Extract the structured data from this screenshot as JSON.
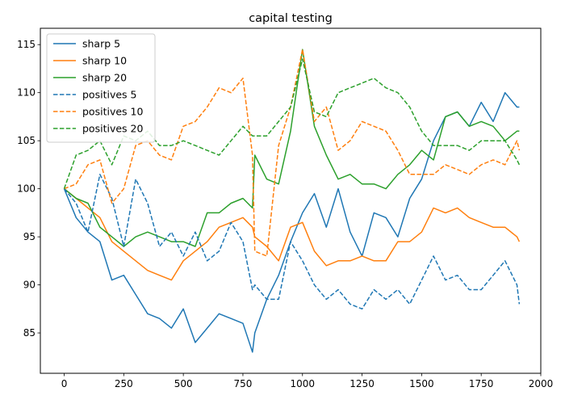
{
  "chart_data": {
    "type": "line",
    "title": "capital testing",
    "xlabel": "",
    "ylabel": "",
    "xlim": [
      -100,
      2000
    ],
    "ylim": [
      80.8,
      116.7
    ],
    "xticks": [
      0,
      250,
      500,
      750,
      1000,
      1250,
      1500,
      1750,
      2000
    ],
    "yticks": [
      85,
      90,
      95,
      100,
      105,
      110,
      115
    ],
    "grid": false,
    "legend_position": "top-left",
    "series": [
      {
        "name": "sharp 5",
        "color": "#1f77b4",
        "dash": "solid",
        "x": [
          0,
          50,
          100,
          150,
          200,
          250,
          300,
          350,
          400,
          450,
          500,
          550,
          600,
          650,
          700,
          750,
          790,
          800,
          850,
          900,
          950,
          1000,
          1050,
          1100,
          1150,
          1200,
          1250,
          1300,
          1350,
          1400,
          1450,
          1500,
          1550,
          1600,
          1650,
          1700,
          1750,
          1800,
          1850,
          1900,
          1910
        ],
        "y": [
          100,
          97,
          95.5,
          94.5,
          90.5,
          91,
          89,
          87,
          86.5,
          85.5,
          87.5,
          84,
          85.5,
          87,
          86.5,
          86,
          83,
          85,
          88.5,
          91,
          94.5,
          97.5,
          99.5,
          96,
          100,
          95.5,
          93,
          97.5,
          97,
          95,
          99,
          101,
          105,
          107.5,
          108,
          106.5,
          109,
          107,
          110,
          108.5,
          108.5
        ]
      },
      {
        "name": "sharp 10",
        "color": "#ff7f0e",
        "dash": "solid",
        "x": [
          0,
          50,
          100,
          150,
          200,
          250,
          300,
          350,
          400,
          450,
          500,
          550,
          600,
          650,
          700,
          750,
          790,
          800,
          850,
          900,
          950,
          1000,
          1050,
          1100,
          1150,
          1200,
          1250,
          1300,
          1350,
          1400,
          1450,
          1500,
          1550,
          1600,
          1650,
          1700,
          1750,
          1800,
          1850,
          1900,
          1910
        ],
        "y": [
          100,
          99,
          98,
          97,
          94.5,
          93.5,
          92.5,
          91.5,
          91,
          90.5,
          92.5,
          93.5,
          94.5,
          96,
          96.5,
          97,
          96,
          95,
          94,
          92.5,
          96,
          96.5,
          93.5,
          92,
          92.5,
          92.5,
          93,
          92.5,
          92.5,
          94.5,
          94.5,
          95.5,
          98,
          97.5,
          98,
          97,
          96.5,
          96,
          96,
          95,
          94.5
        ]
      },
      {
        "name": "sharp 20",
        "color": "#2ca02c",
        "dash": "solid",
        "x": [
          0,
          50,
          100,
          150,
          200,
          250,
          300,
          350,
          400,
          450,
          500,
          550,
          600,
          650,
          700,
          750,
          790,
          800,
          850,
          900,
          950,
          1000,
          1050,
          1100,
          1150,
          1200,
          1250,
          1300,
          1350,
          1400,
          1450,
          1500,
          1550,
          1600,
          1650,
          1700,
          1750,
          1800,
          1850,
          1900,
          1910
        ],
        "y": [
          100,
          99,
          98.5,
          96,
          95,
          94,
          95,
          95.5,
          95,
          94.5,
          94.5,
          94,
          97.5,
          97.5,
          98.5,
          99,
          98,
          103.5,
          101,
          100.5,
          106,
          114.5,
          106.5,
          103.5,
          101,
          101.5,
          100.5,
          100.5,
          100,
          101.5,
          102.5,
          104,
          103,
          107.5,
          108,
          106.5,
          107,
          106.5,
          105,
          106,
          106
        ]
      },
      {
        "name": "positives 5",
        "color": "#1f77b4",
        "dash": "dashed",
        "x": [
          0,
          50,
          100,
          150,
          200,
          250,
          300,
          350,
          400,
          450,
          500,
          550,
          600,
          650,
          700,
          750,
          790,
          800,
          850,
          900,
          950,
          1000,
          1050,
          1100,
          1150,
          1200,
          1250,
          1300,
          1350,
          1400,
          1450,
          1500,
          1550,
          1600,
          1650,
          1700,
          1750,
          1800,
          1850,
          1900,
          1910
        ],
        "y": [
          100,
          98.5,
          95.5,
          101.5,
          99,
          94,
          101,
          98.5,
          94,
          95.5,
          93,
          95.5,
          92.5,
          93.5,
          96.5,
          94.5,
          89.5,
          90,
          88.5,
          88.5,
          94.5,
          92.5,
          90,
          88.5,
          89.5,
          88,
          87.5,
          89.5,
          88.5,
          89.5,
          88,
          90.5,
          93,
          90.5,
          91,
          89.5,
          89.5,
          91,
          92.5,
          90,
          88
        ]
      },
      {
        "name": "positives 10",
        "color": "#ff7f0e",
        "dash": "dashed",
        "x": [
          0,
          50,
          100,
          150,
          200,
          250,
          300,
          350,
          400,
          450,
          500,
          550,
          600,
          650,
          700,
          750,
          790,
          800,
          850,
          900,
          950,
          1000,
          1050,
          1100,
          1150,
          1200,
          1250,
          1300,
          1350,
          1400,
          1450,
          1500,
          1550,
          1600,
          1650,
          1700,
          1750,
          1800,
          1850,
          1900,
          1910
        ],
        "y": [
          100,
          100.5,
          102.5,
          103,
          98.5,
          100,
          104.5,
          105,
          103.5,
          103,
          106.5,
          107,
          108.5,
          110.5,
          110,
          111.5,
          103.5,
          93.5,
          93,
          104.5,
          108.5,
          114.5,
          107,
          108.5,
          104,
          105,
          107,
          106.5,
          106,
          104,
          101.5,
          101.5,
          101.5,
          102.5,
          102,
          101.5,
          102.5,
          103,
          102.5,
          105,
          104
        ]
      },
      {
        "name": "positives 20",
        "color": "#2ca02c",
        "dash": "dashed",
        "x": [
          0,
          50,
          100,
          150,
          200,
          250,
          300,
          350,
          400,
          450,
          500,
          550,
          600,
          650,
          700,
          750,
          790,
          800,
          850,
          900,
          950,
          1000,
          1050,
          1100,
          1150,
          1200,
          1250,
          1300,
          1350,
          1400,
          1450,
          1500,
          1550,
          1600,
          1650,
          1700,
          1750,
          1800,
          1850,
          1900,
          1910
        ],
        "y": [
          100,
          103.5,
          104,
          105,
          102.5,
          105.5,
          105,
          106,
          104.5,
          104.5,
          105,
          104.5,
          104,
          103.5,
          105,
          106.5,
          105.5,
          105.5,
          105.5,
          107,
          108.5,
          113.5,
          108,
          107.5,
          110,
          110.5,
          111,
          111.5,
          110.5,
          110,
          108.5,
          106,
          104.5,
          104.5,
          104.5,
          104,
          105,
          105,
          105,
          103,
          102.5
        ]
      }
    ]
  }
}
